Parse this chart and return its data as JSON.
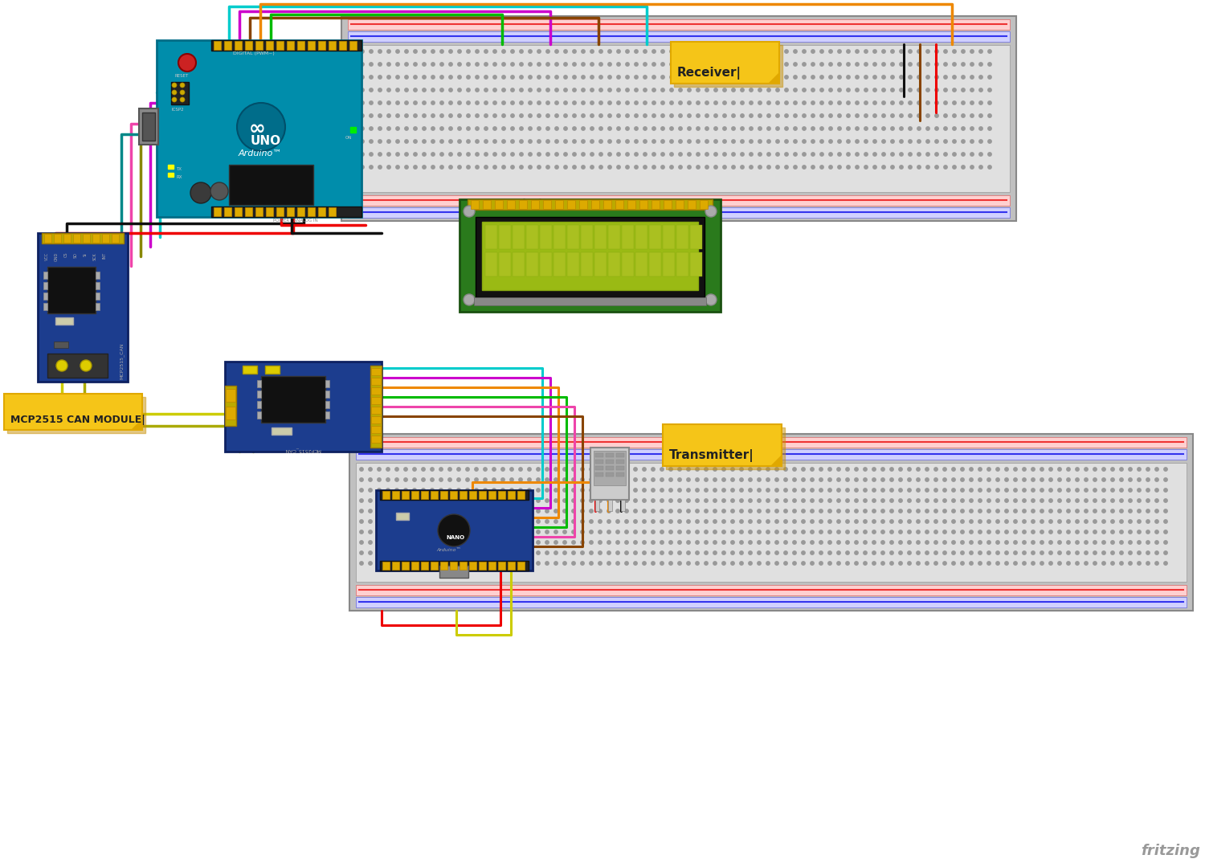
{
  "bg_color": "#ffffff",
  "fritzing_text": "fritzing",
  "receiver_label": "Receiver|",
  "transmitter_label": "Transmitter|",
  "mcp2515_label": "MCP2515 CAN MODULE|",
  "note_color": "#f5c518",
  "note_border": "#e0a800",
  "note_shadow": "#c8920a",
  "arduino_blue": "#008dab",
  "arduino_dark": "#006d87",
  "mcp2515_blue": "#1c3d8e",
  "mcp2515_dark": "#0d2060",
  "lcd_green_board": "#2a7a1c",
  "lcd_screen_color": "#9aba14",
  "lcd_black": "#111111",
  "nano_blue": "#1c3d8e",
  "breadboard_outer": "#c0c0c0",
  "breadboard_inner": "#e0e0e0",
  "hole_color": "#999999",
  "rail_red_bg": "#ffd0d0",
  "rail_blue_bg": "#d0d0ff",
  "rail_red_line": "#ee3333",
  "rail_blue_line": "#3333ee",
  "pin_gold": "#ddaa00",
  "pin_gold_dark": "#bb8800",
  "ic_black": "#111111",
  "crystal_color": "#ccccaa",
  "usb_gray": "#777777",
  "reset_red": "#cc2222",
  "dht_body": "#cccccc",
  "dht_slots": "#aaaaaa",
  "w_red": "#ee0000",
  "w_black": "#111111",
  "w_orange": "#ee8800",
  "w_brown": "#884400",
  "w_green": "#00bb00",
  "w_cyan": "#00cccc",
  "w_magenta": "#cc00cc",
  "w_yellow": "#cccc00",
  "w_yellow2": "#aaaa00",
  "w_pink": "#ee44aa",
  "w_teal": "#008888",
  "w_olive": "#888800",
  "w_gray": "#888888",
  "w_white": "#dddddd",
  "w_purple": "#8800cc"
}
